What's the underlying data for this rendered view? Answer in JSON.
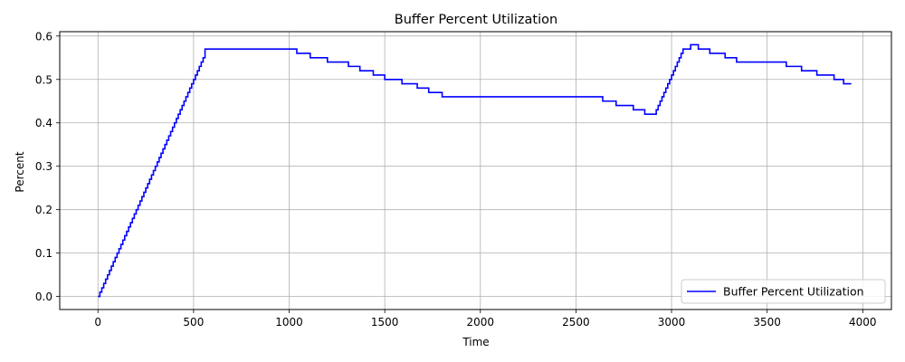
{
  "chart_data": {
    "type": "line",
    "title": "Buffer Percent Utilization",
    "xlabel": "Time",
    "ylabel": "Percent",
    "xlim": [
      -200,
      4150
    ],
    "ylim": [
      -0.03,
      0.61
    ],
    "xticks": [
      0,
      500,
      1000,
      1500,
      2000,
      2500,
      3000,
      3500,
      4000
    ],
    "yticks": [
      0.0,
      0.1,
      0.2,
      0.3,
      0.4,
      0.5,
      0.6
    ],
    "xtick_labels": [
      "0",
      "500",
      "1000",
      "1500",
      "2000",
      "2500",
      "3000",
      "3500",
      "4000"
    ],
    "ytick_labels": [
      "0.0",
      "0.1",
      "0.2",
      "0.3",
      "0.4",
      "0.5",
      "0.6"
    ],
    "grid": true,
    "legend_position": "lower-right",
    "series": [
      {
        "name": "Buffer Percent Utilization",
        "color": "#0000ff",
        "step": "post",
        "x": [
          0,
          10,
          20,
          30,
          40,
          50,
          60,
          70,
          80,
          90,
          100,
          110,
          120,
          130,
          140,
          150,
          160,
          170,
          180,
          190,
          200,
          210,
          220,
          230,
          240,
          250,
          260,
          270,
          280,
          290,
          300,
          310,
          320,
          330,
          340,
          350,
          360,
          370,
          380,
          390,
          400,
          410,
          420,
          430,
          440,
          450,
          460,
          470,
          480,
          490,
          500,
          510,
          520,
          530,
          540,
          550,
          560,
          1040,
          1110,
          1200,
          1310,
          1370,
          1440,
          1500,
          1590,
          1670,
          1730,
          1800,
          2640,
          2710,
          2800,
          2860,
          2920,
          2930,
          2940,
          2950,
          2960,
          2970,
          2980,
          2990,
          3000,
          3010,
          3020,
          3030,
          3040,
          3050,
          3060,
          3070,
          3080,
          3100,
          3140,
          3200,
          3280,
          3340,
          3600,
          3680,
          3760,
          3850,
          3900,
          3940
        ],
        "y": [
          0.0,
          0.01,
          0.02,
          0.03,
          0.04,
          0.05,
          0.06,
          0.07,
          0.08,
          0.09,
          0.1,
          0.11,
          0.12,
          0.13,
          0.14,
          0.15,
          0.16,
          0.17,
          0.18,
          0.19,
          0.2,
          0.21,
          0.22,
          0.23,
          0.24,
          0.25,
          0.26,
          0.27,
          0.28,
          0.29,
          0.3,
          0.31,
          0.32,
          0.33,
          0.34,
          0.35,
          0.36,
          0.37,
          0.38,
          0.39,
          0.4,
          0.41,
          0.42,
          0.43,
          0.44,
          0.45,
          0.46,
          0.47,
          0.48,
          0.49,
          0.5,
          0.51,
          0.52,
          0.53,
          0.54,
          0.55,
          0.57,
          0.56,
          0.55,
          0.54,
          0.53,
          0.52,
          0.51,
          0.5,
          0.49,
          0.48,
          0.47,
          0.46,
          0.45,
          0.44,
          0.43,
          0.42,
          0.43,
          0.44,
          0.45,
          0.46,
          0.47,
          0.48,
          0.49,
          0.5,
          0.51,
          0.52,
          0.53,
          0.54,
          0.55,
          0.56,
          0.57,
          0.57,
          0.57,
          0.58,
          0.57,
          0.56,
          0.55,
          0.54,
          0.53,
          0.52,
          0.51,
          0.5,
          0.49,
          0.49
        ]
      }
    ]
  }
}
